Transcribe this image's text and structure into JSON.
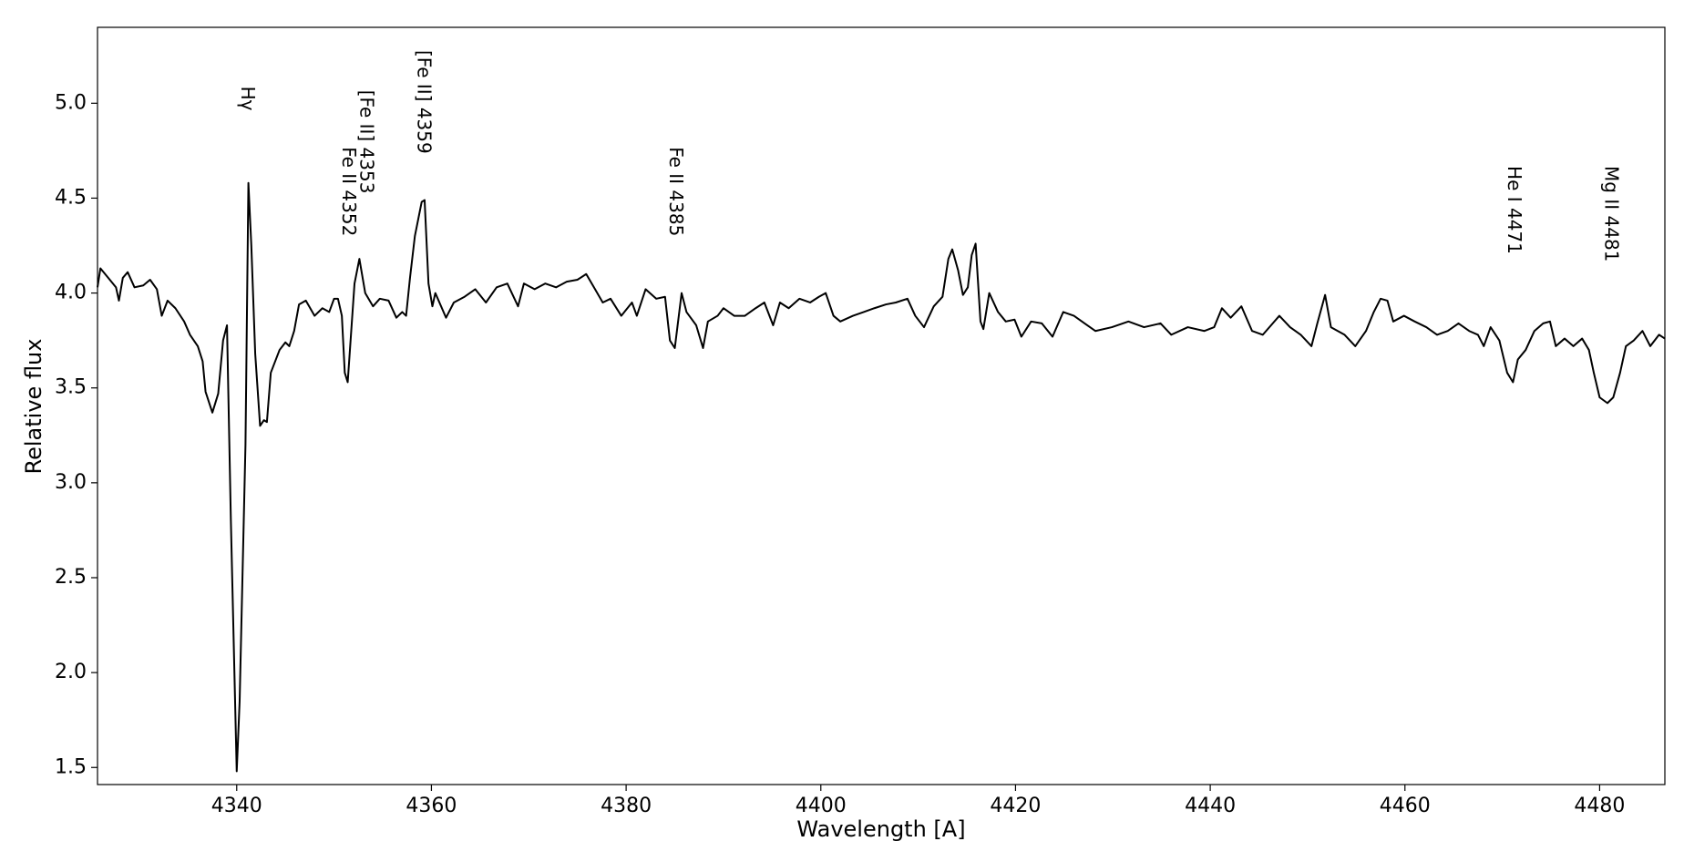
{
  "chart_data": {
    "type": "line",
    "xlabel": "Wavelength [A]",
    "ylabel": "Relative flux",
    "color": "#000000",
    "xlim": [
      4325.7,
      4486.7
    ],
    "ylim": [
      1.41,
      5.4
    ],
    "xticks": [
      4340,
      4360,
      4380,
      4400,
      4420,
      4440,
      4460,
      4480
    ],
    "yticks": [
      1.5,
      {
        "value": 2,
        "label": "2.0"
      },
      2.5,
      {
        "value": 3,
        "label": "3.0"
      },
      3.5,
      {
        "value": 4,
        "label": "4.0"
      },
      4.5,
      {
        "value": 5,
        "label": "5.0"
      }
    ],
    "x": [
      4325.7,
      4326.0,
      4326.8,
      4327.6,
      4327.9,
      4328.3,
      4328.8,
      4329.5,
      4330.4,
      4331.1,
      4331.8,
      4332.3,
      4332.9,
      4333.7,
      4334.6,
      4335.2,
      4336.0,
      4336.5,
      4336.8,
      4337.5,
      4338.1,
      4338.6,
      4339.0,
      4339.4,
      4340.0,
      4340.3,
      4340.9,
      4341.2,
      4341.5,
      4341.9,
      4342.4,
      4342.8,
      4343.1,
      4343.5,
      4344.4,
      4345.0,
      4345.4,
      4345.9,
      4346.4,
      4347.1,
      4348.0,
      4348.8,
      4349.5,
      4350.0,
      4350.4,
      4350.8,
      4351.1,
      4351.4,
      4352.1,
      4352.6,
      4353.2,
      4354.0,
      4354.7,
      4355.6,
      4356.4,
      4357.0,
      4357.4,
      4357.8,
      4358.3,
      4359.0,
      4359.3,
      4359.7,
      4360.1,
      4360.4,
      4361.5,
      4362.3,
      4363.4,
      4364.5,
      4365.6,
      4366.7,
      4367.8,
      4368.9,
      4369.5,
      4370.6,
      4371.7,
      4372.8,
      4373.9,
      4375.0,
      4375.9,
      4376.7,
      4377.6,
      4378.4,
      4379.5,
      4380.6,
      4381.1,
      4382.0,
      4383.1,
      4384.0,
      4384.5,
      4385.0,
      4385.7,
      4386.2,
      4387.2,
      4387.9,
      4388.4,
      4389.4,
      4390.0,
      4391.1,
      4392.2,
      4393.3,
      4394.2,
      4395.1,
      4395.8,
      4396.7,
      4397.8,
      4398.9,
      4399.8,
      4400.5,
      4401.3,
      4402.0,
      4403.3,
      4404.4,
      4405.5,
      4406.7,
      4407.7,
      4408.9,
      4409.7,
      4410.6,
      4411.6,
      4412.5,
      4413.1,
      4413.5,
      4414.1,
      4414.6,
      4415.1,
      4415.5,
      4415.9,
      4416.4,
      4416.7,
      4417.3,
      4418.2,
      4419.0,
      4419.9,
      4420.6,
      4421.6,
      4422.7,
      4423.8,
      4424.9,
      4426.0,
      4427.1,
      4428.2,
      4429.9,
      4431.6,
      4433.2,
      4434.9,
      4436.0,
      4437.7,
      4439.4,
      4440.4,
      4441.2,
      4442.1,
      4443.2,
      4444.3,
      4445.4,
      4447.1,
      4448.2,
      4449.3,
      4450.4,
      4451.0,
      4451.8,
      4452.4,
      4453.8,
      4454.9,
      4456.0,
      4456.8,
      4457.5,
      4458.2,
      4458.8,
      4459.9,
      4461.0,
      4462.2,
      4463.3,
      4464.4,
      4465.5,
      4466.6,
      4467.5,
      4468.1,
      4468.8,
      4469.7,
      4470.5,
      4471.1,
      4471.6,
      4472.4,
      4473.3,
      4474.2,
      4474.9,
      4475.5,
      4476.4,
      4477.3,
      4478.2,
      4478.9,
      4479.4,
      4480.0,
      4480.8,
      4481.4,
      4482.1,
      4482.7,
      4483.5,
      4484.4,
      4485.2,
      4486.1,
      4486.7
    ],
    "values": [
      4.03,
      4.13,
      4.08,
      4.03,
      3.96,
      4.08,
      4.11,
      4.03,
      4.04,
      4.07,
      4.02,
      3.88,
      3.96,
      3.92,
      3.85,
      3.78,
      3.72,
      3.64,
      3.48,
      3.37,
      3.47,
      3.75,
      3.83,
      2.8,
      1.48,
      1.85,
      3.2,
      4.58,
      4.25,
      3.68,
      3.3,
      3.33,
      3.32,
      3.58,
      3.7,
      3.74,
      3.72,
      3.8,
      3.94,
      3.96,
      3.88,
      3.92,
      3.9,
      3.97,
      3.97,
      3.88,
      3.58,
      3.53,
      4.05,
      4.18,
      4.0,
      3.93,
      3.97,
      3.96,
      3.87,
      3.9,
      3.88,
      4.08,
      4.3,
      4.48,
      4.49,
      4.05,
      3.93,
      4.0,
      3.87,
      3.95,
      3.98,
      4.02,
      3.95,
      4.03,
      4.05,
      3.93,
      4.05,
      4.02,
      4.05,
      4.03,
      4.06,
      4.07,
      4.1,
      4.03,
      3.95,
      3.97,
      3.88,
      3.95,
      3.88,
      4.02,
      3.97,
      3.98,
      3.75,
      3.71,
      4.0,
      3.9,
      3.83,
      3.71,
      3.85,
      3.88,
      3.92,
      3.88,
      3.88,
      3.92,
      3.95,
      3.83,
      3.95,
      3.92,
      3.97,
      3.95,
      3.98,
      4.0,
      3.88,
      3.85,
      3.88,
      3.9,
      3.92,
      3.94,
      3.95,
      3.97,
      3.88,
      3.82,
      3.93,
      3.98,
      4.18,
      4.23,
      4.12,
      3.99,
      4.03,
      4.2,
      4.26,
      3.85,
      3.81,
      4.0,
      3.9,
      3.85,
      3.86,
      3.77,
      3.85,
      3.84,
      3.77,
      3.9,
      3.88,
      3.84,
      3.8,
      3.82,
      3.85,
      3.82,
      3.84,
      3.78,
      3.82,
      3.8,
      3.82,
      3.92,
      3.87,
      3.93,
      3.8,
      3.78,
      3.88,
      3.82,
      3.78,
      3.72,
      3.84,
      3.99,
      3.82,
      3.78,
      3.72,
      3.8,
      3.9,
      3.97,
      3.96,
      3.85,
      3.88,
      3.85,
      3.82,
      3.78,
      3.8,
      3.84,
      3.8,
      3.78,
      3.72,
      3.82,
      3.75,
      3.58,
      3.53,
      3.65,
      3.7,
      3.8,
      3.84,
      3.85,
      3.72,
      3.76,
      3.72,
      3.76,
      3.7,
      3.58,
      3.45,
      3.42,
      3.45,
      3.58,
      3.72,
      3.75,
      3.8,
      3.72,
      3.78,
      3.76
    ],
    "annotations": [
      {
        "text": "Hγ",
        "x": 4341.0,
        "y": 5.09
      },
      {
        "text": "Fe II 4352",
        "x": 4351.4,
        "y": 4.77
      },
      {
        "text": "[Fe II] 4353",
        "x": 4353.2,
        "y": 5.07
      },
      {
        "text": "[Fe II] 4359",
        "x": 4359.1,
        "y": 5.28
      },
      {
        "text": "Fe II 4385",
        "x": 4385.0,
        "y": 4.77
      },
      {
        "text": "He I 4471",
        "x": 4471.1,
        "y": 4.67
      },
      {
        "text": "Mg II 4481",
        "x": 4481.1,
        "y": 4.67
      }
    ]
  }
}
